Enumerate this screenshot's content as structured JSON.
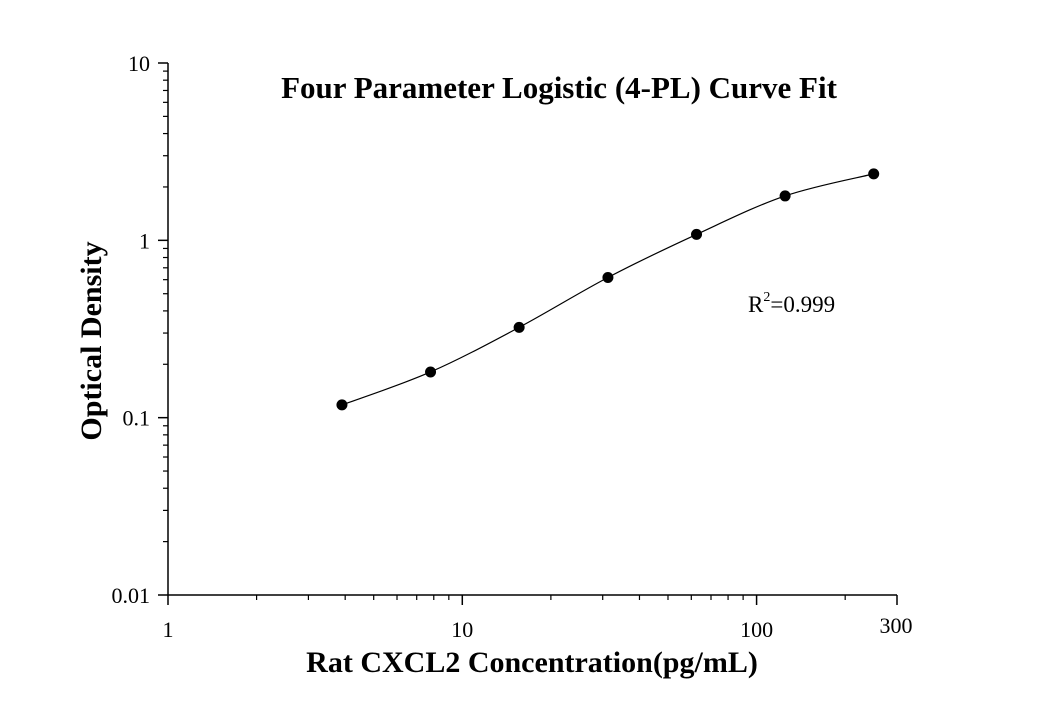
{
  "chart_data": {
    "type": "scatter",
    "title": "Four Parameter Logistic (4-PL) Curve Fit",
    "xlabel": "Rat CXCL2 Concentration(pg/mL)",
    "ylabel": "Optical Density",
    "x_scale": "log",
    "y_scale": "log",
    "xlim": [
      1,
      300
    ],
    "ylim": [
      0.01,
      10
    ],
    "x_ticks": [
      {
        "value": 1,
        "label": "1"
      },
      {
        "value": 10,
        "label": "10"
      },
      {
        "value": 100,
        "label": "100"
      },
      {
        "value": 300,
        "label": "300"
      }
    ],
    "y_ticks": [
      {
        "value": 0.01,
        "label": "0.01"
      },
      {
        "value": 0.1,
        "label": "0.1"
      },
      {
        "value": 1,
        "label": "1"
      },
      {
        "value": 10,
        "label": "10"
      }
    ],
    "grid": false,
    "series": [
      {
        "points": [
          {
            "x": 3.9,
            "y": 0.118
          },
          {
            "x": 7.8,
            "y": 0.181
          },
          {
            "x": 15.6,
            "y": 0.323
          },
          {
            "x": 31.25,
            "y": 0.617
          },
          {
            "x": 62.5,
            "y": 1.08
          },
          {
            "x": 125,
            "y": 1.78
          },
          {
            "x": 250,
            "y": 2.37
          }
        ],
        "marker_color": "#000000",
        "fit_line": "4-PL curve",
        "line_color": "#000000"
      }
    ],
    "annotations": [
      {
        "r_label": "R",
        "superscript": "2",
        "value_text": "=0.999"
      }
    ]
  }
}
